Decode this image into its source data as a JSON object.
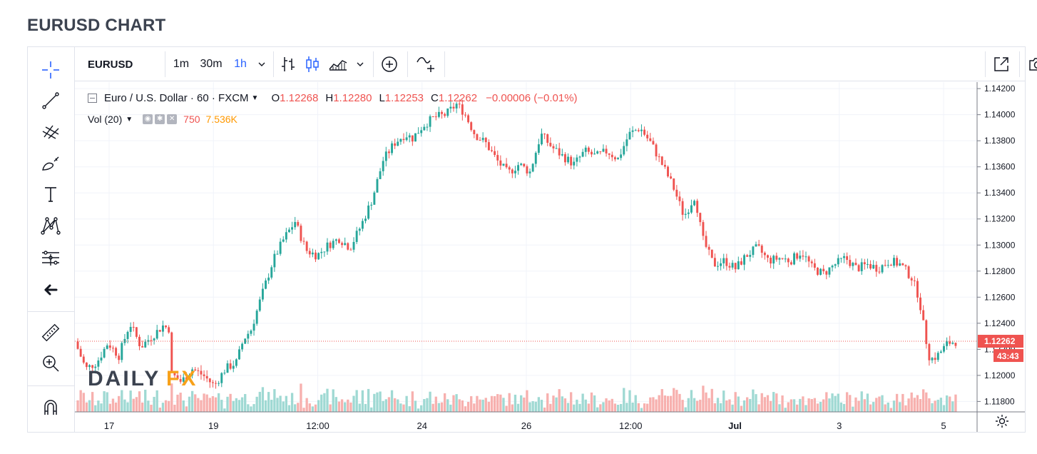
{
  "page": {
    "title": "EURUSD CHART"
  },
  "top_toolbar": {
    "symbol": "EURUSD",
    "intervals": [
      "1m",
      "30m",
      "1h"
    ],
    "active_interval": "1h",
    "icons": [
      "chevron-down-icon",
      "bar-chart-style-icon",
      "candles-style-icon",
      "area-style-icon",
      "chevron-down-icon",
      "add-indicator-icon",
      "compare-icon",
      "popout-icon",
      "camera-icon"
    ]
  },
  "left_toolbar": {
    "tools": [
      "crosshair-icon",
      "trend-line-icon",
      "pitchfork-icon",
      "brush-icon",
      "text-icon",
      "pattern-icon",
      "prediction-icon",
      "back-arrow-icon",
      "ruler-icon",
      "zoom-in-icon",
      "magnet-icon"
    ]
  },
  "legend": {
    "title": "Euro / U.S. Dollar · 60 · FXCM",
    "o_key": "O",
    "o_val": "1.12268",
    "h_key": "H",
    "h_val": "1.12280",
    "l_key": "L",
    "l_val": "1.12253",
    "c_key": "C",
    "c_val": "1.12262",
    "change": "−0.00006 (−0.01%)"
  },
  "volume": {
    "label": "Vol (20)",
    "value": "750",
    "ma_value": "7.536K"
  },
  "watermark": {
    "text_a": "DAILY",
    "text_b": "FX"
  },
  "current_price": {
    "price": "1.12262",
    "countdown": "43:43"
  },
  "colors": {
    "up": "#26a69a",
    "down": "#ef5350",
    "vol_up": "#9fd9d3",
    "vol_down": "#f7b0ae",
    "accent": "#2962ff",
    "grid": "#f0f3fa"
  },
  "chart_data": {
    "type": "candlestick",
    "symbol": "EURUSD",
    "interval": "60",
    "y_axis": {
      "ticks": [
        "1.14200",
        "1.14000",
        "1.13800",
        "1.13600",
        "1.13400",
        "1.13200",
        "1.13000",
        "1.12800",
        "1.12600",
        "1.12400",
        "1.12200",
        "1.12000",
        "1.11800"
      ],
      "range": [
        1.1172,
        1.1425
      ]
    },
    "x_axis": {
      "ticks": [
        "17",
        "19",
        "12:00",
        "24",
        "26",
        "12:00",
        "Jul",
        "3",
        "5"
      ]
    },
    "close_path": [
      [
        0,
        1.1226
      ],
      [
        0.015,
        1.1205
      ],
      [
        0.03,
        1.121
      ],
      [
        0.045,
        1.1225
      ],
      [
        0.06,
        1.1215
      ],
      [
        0.075,
        1.124
      ],
      [
        0.09,
        1.1222
      ],
      [
        0.105,
        1.123
      ],
      [
        0.12,
        1.1238
      ],
      [
        0.128,
        1.1236
      ],
      [
        0.13,
        1.1202
      ],
      [
        0.145,
        1.1195
      ],
      [
        0.16,
        1.1205
      ],
      [
        0.175,
        1.12
      ],
      [
        0.19,
        1.1192
      ],
      [
        0.205,
        1.1205
      ],
      [
        0.22,
        1.121
      ],
      [
        0.23,
        1.1228
      ],
      [
        0.24,
        1.1235
      ],
      [
        0.255,
        1.1262
      ],
      [
        0.27,
        1.1288
      ],
      [
        0.285,
        1.1305
      ],
      [
        0.3,
        1.1318
      ],
      [
        0.315,
        1.1296
      ],
      [
        0.33,
        1.1292
      ],
      [
        0.345,
        1.13
      ],
      [
        0.36,
        1.1305
      ],
      [
        0.375,
        1.1298
      ],
      [
        0.39,
        1.1315
      ],
      [
        0.405,
        1.1335
      ],
      [
        0.42,
        1.1365
      ],
      [
        0.435,
        1.1378
      ],
      [
        0.45,
        1.1385
      ],
      [
        0.46,
        1.1382
      ],
      [
        0.475,
        1.1392
      ],
      [
        0.49,
        1.1398
      ],
      [
        0.505,
        1.14
      ],
      [
        0.52,
        1.1408
      ],
      [
        0.53,
        1.1402
      ],
      [
        0.545,
        1.1385
      ],
      [
        0.56,
        1.1378
      ],
      [
        0.575,
        1.1365
      ],
      [
        0.59,
        1.1355
      ],
      [
        0.605,
        1.1362
      ],
      [
        0.62,
        1.1356
      ],
      [
        0.635,
        1.1385
      ],
      [
        0.65,
        1.1375
      ],
      [
        0.665,
        1.1368
      ],
      [
        0.68,
        1.1362
      ],
      [
        0.695,
        1.1372
      ],
      [
        0.71,
        1.1368
      ],
      [
        0.725,
        1.1372
      ],
      [
        0.74,
        1.1366
      ],
      [
        0.755,
        1.1385
      ],
      [
        0.77,
        1.139
      ],
      [
        0.785,
        1.1378
      ],
      [
        0.8,
        1.1362
      ],
      [
        0.815,
        1.1345
      ],
      [
        0.83,
        1.1322
      ],
      [
        0.845,
        1.1338
      ],
      [
        0.855,
        1.1305
      ],
      [
        0.87,
        1.1285
      ],
      [
        0.885,
        1.1288
      ],
      [
        0.9,
        1.1282
      ],
      [
        0.915,
        1.1292
      ],
      [
        0.93,
        1.1298
      ],
      [
        0.945,
        1.1288
      ],
      [
        0.96,
        1.129
      ],
      [
        0.975,
        1.1288
      ],
      [
        0.99,
        1.1295
      ],
      [
        1.005,
        1.1282
      ],
      [
        1.02,
        1.1278
      ],
      [
        1.035,
        1.1285
      ],
      [
        1.05,
        1.129
      ],
      [
        1.065,
        1.1282
      ],
      [
        1.08,
        1.1285
      ],
      [
        1.095,
        1.1282
      ],
      [
        1.11,
        1.1288
      ],
      [
        1.125,
        1.1285
      ],
      [
        1.14,
        1.1275
      ],
      [
        1.15,
        1.126
      ],
      [
        1.158,
        1.1232
      ],
      [
        1.165,
        1.1212
      ],
      [
        1.175,
        1.1215
      ],
      [
        1.19,
        1.1225
      ],
      [
        1.2,
        1.1226
      ]
    ]
  }
}
